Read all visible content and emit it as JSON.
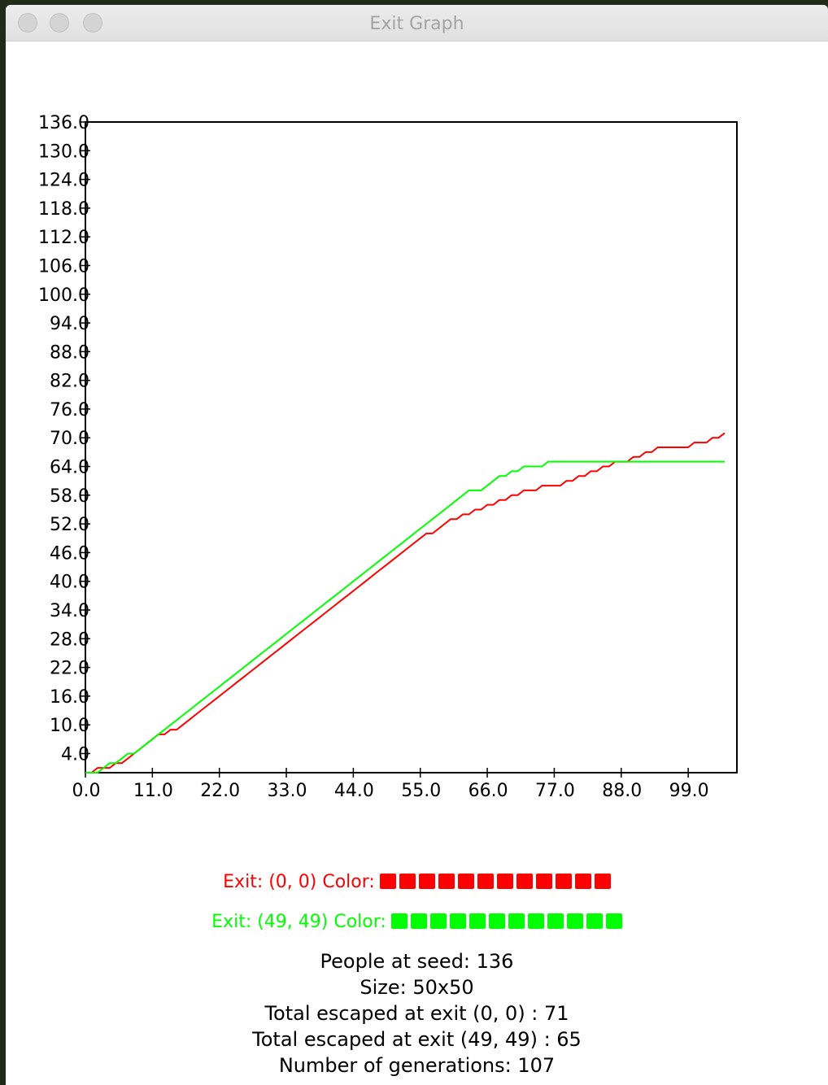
{
  "window": {
    "title": "Exit Graph"
  },
  "chart_data": {
    "type": "line",
    "xlim": [
      0,
      107
    ],
    "ylim": [
      0,
      136
    ],
    "x_ticks": [
      "0.0",
      "11.0",
      "22.0",
      "33.0",
      "44.0",
      "55.0",
      "66.0",
      "77.0",
      "88.0",
      "99.0"
    ],
    "y_ticks": [
      "4.0",
      "10.0",
      "16.0",
      "22.0",
      "28.0",
      "34.0",
      "40.0",
      "46.0",
      "52.0",
      "58.0",
      "64.0",
      "70.0",
      "76.0",
      "82.0",
      "88.0",
      "94.0",
      "100.0",
      "106.0",
      "112.0",
      "118.0",
      "124.0",
      "130.0",
      "136.0"
    ],
    "grid": false,
    "series": [
      {
        "name": "Exit: (0, 0)",
        "color": "#ff0000",
        "points": [
          [
            0,
            0
          ],
          [
            1,
            0
          ],
          [
            2,
            1
          ],
          [
            4,
            1
          ],
          [
            5,
            2
          ],
          [
            6,
            2
          ],
          [
            7,
            3
          ],
          [
            8,
            4
          ],
          [
            9,
            5
          ],
          [
            10,
            6
          ],
          [
            11,
            7
          ],
          [
            12,
            8
          ],
          [
            13,
            8
          ],
          [
            14,
            9
          ],
          [
            15,
            9
          ],
          [
            16,
            10
          ],
          [
            17,
            11
          ],
          [
            18,
            12
          ],
          [
            19,
            13
          ],
          [
            20,
            14
          ],
          [
            21,
            15
          ],
          [
            22,
            16
          ],
          [
            23,
            17
          ],
          [
            24,
            18
          ],
          [
            25,
            19
          ],
          [
            26,
            20
          ],
          [
            27,
            21
          ],
          [
            28,
            22
          ],
          [
            29,
            23
          ],
          [
            30,
            24
          ],
          [
            31,
            25
          ],
          [
            32,
            26
          ],
          [
            33,
            27
          ],
          [
            34,
            28
          ],
          [
            35,
            29
          ],
          [
            36,
            30
          ],
          [
            37,
            31
          ],
          [
            38,
            32
          ],
          [
            39,
            33
          ],
          [
            40,
            34
          ],
          [
            41,
            35
          ],
          [
            42,
            36
          ],
          [
            43,
            37
          ],
          [
            44,
            38
          ],
          [
            45,
            39
          ],
          [
            46,
            40
          ],
          [
            47,
            41
          ],
          [
            48,
            42
          ],
          [
            49,
            43
          ],
          [
            50,
            44
          ],
          [
            51,
            45
          ],
          [
            52,
            46
          ],
          [
            53,
            47
          ],
          [
            54,
            48
          ],
          [
            55,
            49
          ],
          [
            56,
            50
          ],
          [
            57,
            50
          ],
          [
            58,
            51
          ],
          [
            59,
            52
          ],
          [
            60,
            53
          ],
          [
            61,
            53
          ],
          [
            62,
            54
          ],
          [
            63,
            54
          ],
          [
            64,
            55
          ],
          [
            65,
            55
          ],
          [
            66,
            56
          ],
          [
            67,
            56
          ],
          [
            68,
            57
          ],
          [
            69,
            57
          ],
          [
            70,
            58
          ],
          [
            71,
            58
          ],
          [
            72,
            59
          ],
          [
            73,
            59
          ],
          [
            74,
            59
          ],
          [
            75,
            60
          ],
          [
            76,
            60
          ],
          [
            77,
            60
          ],
          [
            78,
            60
          ],
          [
            79,
            61
          ],
          [
            80,
            61
          ],
          [
            81,
            62
          ],
          [
            82,
            62
          ],
          [
            83,
            63
          ],
          [
            84,
            63
          ],
          [
            85,
            64
          ],
          [
            86,
            64
          ],
          [
            87,
            65
          ],
          [
            88,
            65
          ],
          [
            89,
            65
          ],
          [
            90,
            66
          ],
          [
            91,
            66
          ],
          [
            92,
            67
          ],
          [
            93,
            67
          ],
          [
            94,
            68
          ],
          [
            95,
            68
          ],
          [
            96,
            68
          ],
          [
            97,
            68
          ],
          [
            98,
            68
          ],
          [
            99,
            68
          ],
          [
            100,
            69
          ],
          [
            101,
            69
          ],
          [
            102,
            69
          ],
          [
            103,
            70
          ],
          [
            104,
            70
          ],
          [
            105,
            71
          ]
        ]
      },
      {
        "name": "Exit: (49, 49)",
        "color": "#00ff00",
        "points": [
          [
            0,
            0
          ],
          [
            1,
            0
          ],
          [
            2,
            0
          ],
          [
            3,
            1
          ],
          [
            4,
            2
          ],
          [
            5,
            2
          ],
          [
            6,
            3
          ],
          [
            7,
            4
          ],
          [
            8,
            4
          ],
          [
            9,
            5
          ],
          [
            10,
            6
          ],
          [
            11,
            7
          ],
          [
            12,
            8
          ],
          [
            13,
            9
          ],
          [
            14,
            10
          ],
          [
            15,
            11
          ],
          [
            16,
            12
          ],
          [
            17,
            13
          ],
          [
            18,
            14
          ],
          [
            19,
            15
          ],
          [
            20,
            16
          ],
          [
            21,
            17
          ],
          [
            22,
            18
          ],
          [
            23,
            19
          ],
          [
            24,
            20
          ],
          [
            25,
            21
          ],
          [
            26,
            22
          ],
          [
            27,
            23
          ],
          [
            28,
            24
          ],
          [
            29,
            25
          ],
          [
            30,
            26
          ],
          [
            31,
            27
          ],
          [
            32,
            28
          ],
          [
            33,
            29
          ],
          [
            34,
            30
          ],
          [
            35,
            31
          ],
          [
            36,
            32
          ],
          [
            37,
            33
          ],
          [
            38,
            34
          ],
          [
            39,
            35
          ],
          [
            40,
            36
          ],
          [
            41,
            37
          ],
          [
            42,
            38
          ],
          [
            43,
            39
          ],
          [
            44,
            40
          ],
          [
            45,
            41
          ],
          [
            46,
            42
          ],
          [
            47,
            43
          ],
          [
            48,
            44
          ],
          [
            49,
            45
          ],
          [
            50,
            46
          ],
          [
            51,
            47
          ],
          [
            52,
            48
          ],
          [
            53,
            49
          ],
          [
            54,
            50
          ],
          [
            55,
            51
          ],
          [
            56,
            52
          ],
          [
            57,
            53
          ],
          [
            58,
            54
          ],
          [
            59,
            55
          ],
          [
            60,
            56
          ],
          [
            61,
            57
          ],
          [
            62,
            58
          ],
          [
            63,
            59
          ],
          [
            64,
            59
          ],
          [
            65,
            59
          ],
          [
            66,
            60
          ],
          [
            67,
            61
          ],
          [
            68,
            62
          ],
          [
            69,
            62
          ],
          [
            70,
            63
          ],
          [
            71,
            63
          ],
          [
            72,
            64
          ],
          [
            73,
            64
          ],
          [
            74,
            64
          ],
          [
            75,
            64
          ],
          [
            76,
            65
          ],
          [
            77,
            65
          ],
          [
            78,
            65
          ],
          [
            88,
            65
          ],
          [
            105,
            65
          ]
        ]
      }
    ]
  },
  "legend": [
    {
      "label": "Exit: (0, 0) Color:",
      "color": "#ff0000",
      "squares": 12
    },
    {
      "label": "Exit: (49, 49) Color:",
      "color": "#00ff00",
      "squares": 12
    }
  ],
  "stats": {
    "people": "People at seed: 136",
    "size": "Size: 50x50",
    "escaped_a": "Total escaped at exit (0, 0) : 71",
    "escaped_b": "Total escaped at exit (49, 49) : 65",
    "generations": "Number of generations: 107"
  }
}
